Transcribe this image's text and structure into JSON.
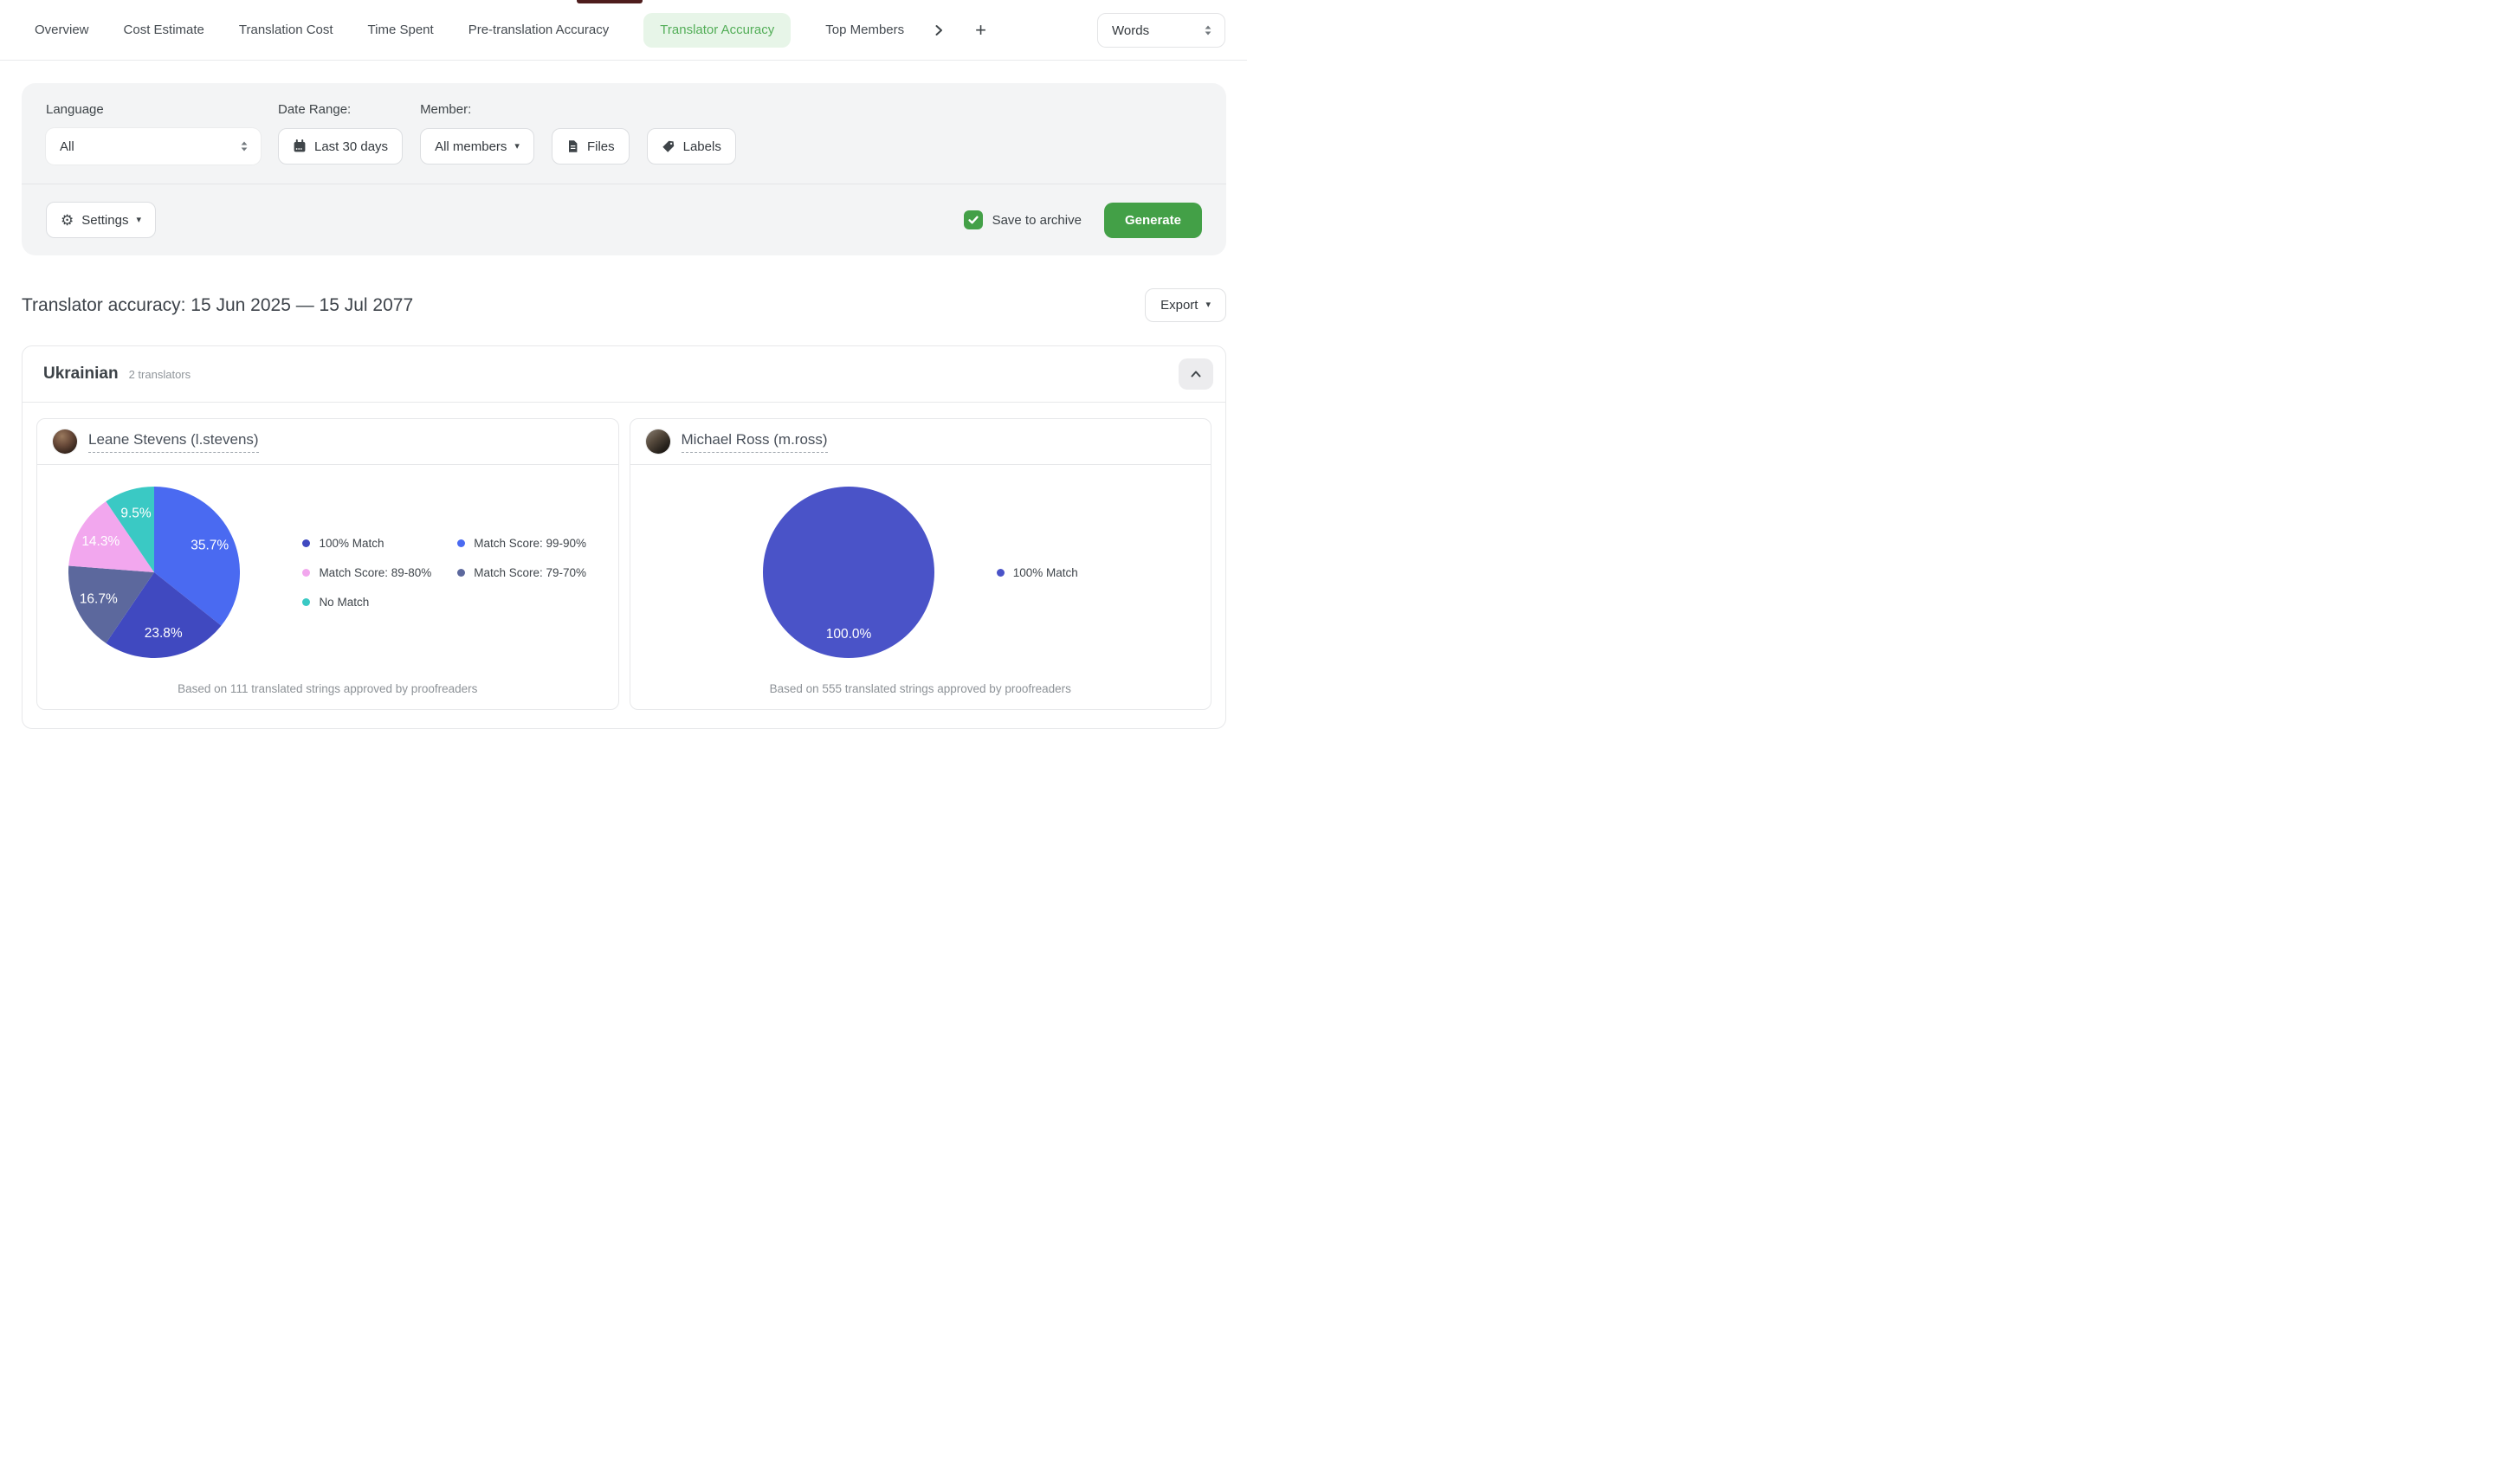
{
  "nav": {
    "tabs": [
      {
        "label": "Overview",
        "active": false
      },
      {
        "label": "Cost Estimate",
        "active": false
      },
      {
        "label": "Translation Cost",
        "active": false
      },
      {
        "label": "Time Spent",
        "active": false
      },
      {
        "label": "Pre-translation Accuracy",
        "active": false
      },
      {
        "label": "Translator Accuracy",
        "active": true
      },
      {
        "label": "Top Members",
        "active": false
      }
    ],
    "add_label": "+",
    "unit_value": "Words"
  },
  "filters": {
    "language_label": "Language",
    "language_value": "All",
    "date_range_label": "Date Range:",
    "date_range_value": "Last 30 days",
    "member_label": "Member:",
    "member_value": "All members",
    "files_label": "Files",
    "labels_label": "Labels",
    "settings_label": "Settings",
    "save_to_archive_label": "Save to archive",
    "save_to_archive_checked": true,
    "generate_label": "Generate"
  },
  "report": {
    "title": "Translator accuracy: 15 Jun 2025 — 15 Jul 2077",
    "export_label": "Export",
    "section": {
      "language": "Ukrainian",
      "translators_count": "2 translators"
    }
  },
  "theme": {
    "accent_green": "#43a047",
    "active_tab_bg": "#e7f5e8",
    "active_tab_text": "#53ae58",
    "panel_bg": "#f3f4f5"
  },
  "chart_data": [
    {
      "type": "pie",
      "translator": "Leane Stevens (l.stevens)",
      "slices": [
        {
          "label": "Match Score: 99-90%",
          "value": 35.7,
          "color": "#4a6af1"
        },
        {
          "label": "100% Match",
          "value": 23.8,
          "color": "#4049c0"
        },
        {
          "label": "Match Score: 79-70%",
          "value": 16.7,
          "color": "#5c689d"
        },
        {
          "label": "Match Score: 89-80%",
          "value": 14.3,
          "color": "#f2a7ee"
        },
        {
          "label": "No Match",
          "value": 9.5,
          "color": "#3ac9c4"
        }
      ],
      "legend": [
        {
          "label": "100% Match",
          "color": "#4049c0"
        },
        {
          "label": "Match Score: 99-90%",
          "color": "#4a6af1"
        },
        {
          "label": "Match Score: 89-80%",
          "color": "#f2a7ee"
        },
        {
          "label": "Match Score: 79-70%",
          "color": "#5c689d"
        },
        {
          "label": "No Match",
          "color": "#3ac9c4"
        }
      ],
      "caption": "Based on 111 translated strings approved by proofreaders"
    },
    {
      "type": "pie",
      "translator": "Michael Ross (m.ross)",
      "slices": [
        {
          "label": "100% Match",
          "value": 100,
          "color": "#4a53c8"
        }
      ],
      "legend": [
        {
          "label": "100% Match",
          "color": "#4a53c8"
        }
      ],
      "caption": "Based on 555 translated strings approved by proofreaders"
    }
  ]
}
